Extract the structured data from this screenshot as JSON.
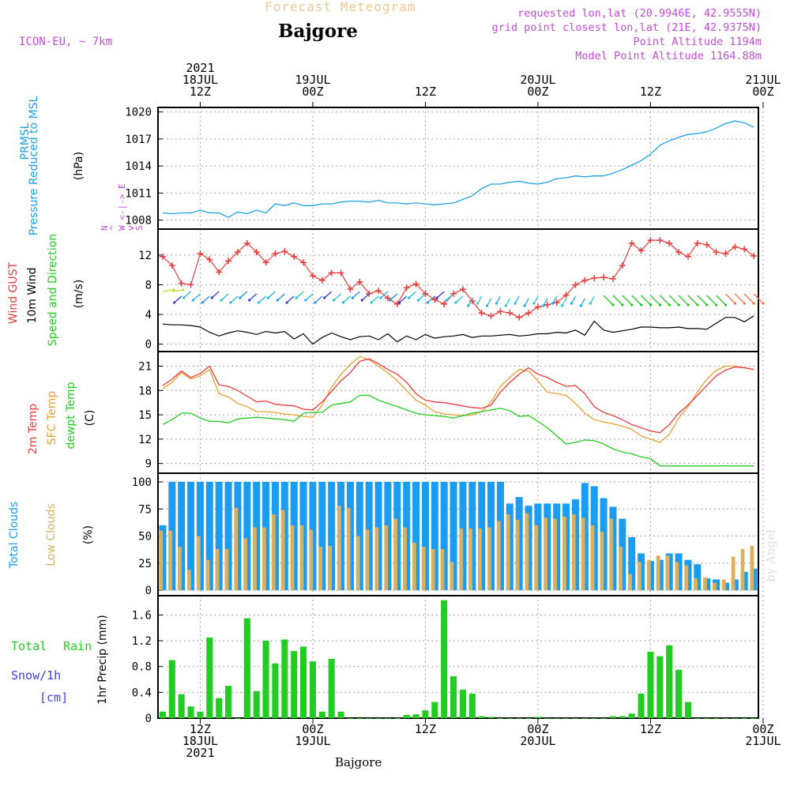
{
  "header": {
    "top_title": "Forecast Meteogram",
    "location": "Bajgore",
    "model": "ICON-EU, ~ 7km",
    "requested": "requested lon,lat (20.9946E, 42.9555N)",
    "grid_point": "grid point closest lon,lat (21E, 42.9375N)",
    "point_altitude": "Point Altitude 1194m",
    "model_altitude": "Model Point Altitude 1164.88m",
    "footer": "Bajgore",
    "credit": "by Angel"
  },
  "time_axis": {
    "top_labels": [
      {
        "line1": "2021",
        "line2": "18JUL",
        "line3": "12Z"
      },
      {
        "line1": "",
        "line2": "19JUL",
        "line3": "00Z"
      },
      {
        "line1": "",
        "line2": "",
        "line3": "12Z"
      },
      {
        "line1": "",
        "line2": "20JUL",
        "line3": "00Z"
      },
      {
        "line1": "",
        "line2": "",
        "line3": "12Z"
      },
      {
        "line1": "",
        "line2": "21JUL",
        "line3": "00Z"
      }
    ],
    "bottom_labels": [
      {
        "line1": "12Z",
        "line2": "18JUL",
        "line3": "2021"
      },
      {
        "line1": "00Z",
        "line2": "19JUL",
        "line3": ""
      },
      {
        "line1": "12Z",
        "line2": "",
        "line3": ""
      },
      {
        "line1": "00Z",
        "line2": "20JUL",
        "line3": ""
      },
      {
        "line1": "12Z",
        "line2": "",
        "line3": ""
      },
      {
        "line1": "00Z",
        "line2": "21JUL",
        "line3": ""
      }
    ],
    "hours_start": 8,
    "hours_end": 71,
    "tick_hours": [
      12,
      24,
      36,
      48,
      60,
      72
    ]
  },
  "panels": {
    "pressure": {
      "label_a": "PRMSL",
      "label_b": "Pressure Reduced to MSL",
      "unit": "(hPa)",
      "ticks": [
        "1008",
        "1011",
        "1014",
        "1017",
        "1020"
      ]
    },
    "wind": {
      "label_a": "Wind GUST",
      "label_b": "10m Wind",
      "label_c": "Speed and Direction",
      "unit": "(m/s)",
      "compass": "N\n^\nW <-|-> E\nv\nS",
      "ticks": [
        "0",
        "4",
        "8",
        "12"
      ]
    },
    "temp": {
      "label_a": "2m Temp",
      "label_b": "SFC Temp",
      "label_c": "dewpt Temp",
      "unit": "(C)",
      "ticks": [
        "9",
        "12",
        "15",
        "18",
        "21"
      ]
    },
    "clouds": {
      "label_a": "Total Clouds",
      "label_b": "Low Clouds",
      "unit": "(%)",
      "ticks": [
        "0",
        "25",
        "50",
        "75",
        "100"
      ]
    },
    "precip": {
      "label_a": "Total",
      "label_b": "Rain",
      "label_c": "Snow/1h",
      "label_d": "[cm]",
      "unit": "1hr Precip (mm)",
      "ticks": [
        "0",
        "0.4",
        "0.8",
        "1.2",
        "1.6"
      ]
    }
  },
  "colors": {
    "pressure": "#1ea0e6",
    "gust": "#e83c3c",
    "wind": "#000000",
    "temp2m": "#e83c3c",
    "sfc": "#e8a030",
    "dewpt": "#22cc22",
    "total_clouds": "#1a9cf0",
    "low_clouds": "#d9b060",
    "precip": "#22cc22",
    "purple": "#c04bd8",
    "snow": "#4040e0"
  },
  "chart_data": {
    "type": "line",
    "x_unit": "forecast hour from 18JUL2021 00Z",
    "x": [
      8,
      9,
      10,
      11,
      12,
      13,
      14,
      15,
      16,
      17,
      18,
      19,
      20,
      21,
      22,
      23,
      24,
      25,
      26,
      27,
      28,
      29,
      30,
      31,
      32,
      33,
      34,
      35,
      36,
      37,
      38,
      39,
      40,
      41,
      42,
      43,
      44,
      45,
      46,
      47,
      48,
      49,
      50,
      51,
      52,
      53,
      54,
      55,
      56,
      57,
      58,
      59,
      60,
      61,
      62,
      63,
      64,
      65,
      66,
      67,
      68,
      69,
      70,
      71
    ],
    "series": [
      {
        "name": "PRMSL",
        "values": [
          1008.8,
          1008.7,
          1008.8,
          1008.8,
          1009.1,
          1008.8,
          1008.8,
          1008.3,
          1008.9,
          1008.7,
          1009.1,
          1008.8,
          1009.8,
          1009.6,
          1009.9,
          1009.6,
          1009.6,
          1009.8,
          1009.8,
          1010.0,
          1010.1,
          1010.1,
          1010.0,
          1010.2,
          1009.9,
          1009.9,
          1009.8,
          1009.9,
          1009.8,
          1009.7,
          1009.8,
          1009.9,
          1010.3,
          1010.7,
          1011.5,
          1012.0,
          1012.0,
          1012.2,
          1012.3,
          1012.1,
          1012.0,
          1012.2,
          1012.6,
          1012.7,
          1012.9,
          1012.8,
          1012.9,
          1012.9,
          1013.2,
          1013.6,
          1014.1,
          1014.6,
          1015.3,
          1016.3,
          1016.8,
          1017.2,
          1017.5,
          1017.6,
          1017.8,
          1018.2,
          1018.7,
          1019.0,
          1018.8,
          1018.3
        ]
      },
      {
        "name": "Wind GUST",
        "values": [
          11.8,
          10.6,
          8.2,
          8.0,
          12.2,
          11.4,
          9.7,
          11.2,
          12.4,
          13.6,
          12.4,
          11.0,
          12.2,
          12.5,
          11.8,
          11.0,
          9.2,
          8.6,
          9.6,
          9.6,
          7.4,
          8.4,
          6.8,
          7.2,
          6.2,
          5.4,
          7.6,
          8.1,
          6.8,
          6.0,
          5.4,
          6.8,
          7.4,
          5.8,
          4.2,
          3.8,
          4.4,
          4.2,
          3.6,
          4.2,
          5.0,
          5.3,
          5.6,
          6.6,
          8.0,
          8.6,
          8.9,
          9.0,
          8.8,
          10.6,
          13.6,
          12.6,
          14.0,
          14.0,
          13.6,
          12.4,
          11.8,
          13.6,
          13.4,
          12.4,
          12.2,
          13.1,
          12.8,
          11.9
        ]
      },
      {
        "name": "10m Wind",
        "values": [
          2.7,
          2.6,
          2.6,
          2.5,
          2.3,
          1.6,
          1.1,
          1.5,
          1.8,
          1.6,
          1.3,
          1.7,
          1.5,
          1.7,
          0.7,
          1.4,
          0.0,
          0.9,
          1.5,
          1.0,
          0.6,
          1.0,
          1.1,
          0.6,
          1.4,
          0.3,
          1.1,
          0.6,
          1.3,
          0.8,
          1.0,
          1.1,
          1.3,
          0.9,
          1.1,
          1.1,
          1.2,
          1.3,
          1.1,
          1.2,
          1.4,
          1.4,
          1.6,
          1.5,
          1.9,
          1.2,
          3.1,
          1.9,
          1.6,
          1.8,
          2.0,
          2.3,
          2.3,
          2.2,
          2.2,
          2.3,
          2.1,
          2.1,
          2.0,
          2.8,
          3.6,
          3.6,
          3.0,
          3.8
        ]
      },
      {
        "name": "2m Temp",
        "values": [
          18.6,
          19.4,
          20.4,
          19.6,
          20.1,
          21.0,
          18.7,
          18.5,
          18.0,
          17.3,
          16.6,
          16.7,
          16.3,
          16.2,
          16.1,
          15.7,
          15.6,
          16.6,
          17.9,
          19.2,
          20.2,
          21.6,
          21.9,
          21.3,
          20.6,
          20.0,
          19.0,
          17.6,
          16.8,
          16.6,
          16.5,
          16.3,
          16.1,
          15.9,
          15.8,
          16.2,
          17.8,
          19.0,
          20.0,
          20.8,
          20.0,
          19.6,
          19.0,
          18.5,
          18.6,
          17.6,
          16.0,
          15.3,
          14.9,
          14.4,
          13.8,
          13.4,
          13.0,
          12.8,
          13.8,
          15.2,
          16.2,
          17.4,
          18.6,
          19.8,
          20.5,
          20.9,
          20.8,
          20.6
        ]
      },
      {
        "name": "SFC Temp",
        "values": [
          18.2,
          19.0,
          20.2,
          19.4,
          19.8,
          20.6,
          17.6,
          17.2,
          16.4,
          16.0,
          15.4,
          15.4,
          15.3,
          15.1,
          15.0,
          14.8,
          14.7,
          16.2,
          18.4,
          20.0,
          21.2,
          22.2,
          21.8,
          21.0,
          20.2,
          19.2,
          18.0,
          16.8,
          16.2,
          15.4,
          15.1,
          15.0,
          14.9,
          15.0,
          15.4,
          16.6,
          18.5,
          19.6,
          20.6,
          20.4,
          19.2,
          17.8,
          17.6,
          17.4,
          16.4,
          15.2,
          14.4,
          14.1,
          13.9,
          13.6,
          13.2,
          12.4,
          12.0,
          11.6,
          12.6,
          14.6,
          16.0,
          17.8,
          19.4,
          20.5,
          21.0,
          21.0,
          20.8,
          20.6
        ]
      },
      {
        "name": "dewpt Temp",
        "values": [
          13.8,
          14.4,
          15.2,
          15.2,
          14.6,
          14.2,
          14.2,
          14.0,
          14.5,
          14.6,
          14.7,
          14.6,
          14.5,
          14.4,
          14.2,
          15.2,
          15.3,
          15.3,
          16.2,
          16.4,
          16.6,
          17.4,
          17.4,
          16.8,
          16.4,
          16.0,
          15.6,
          15.2,
          15.0,
          14.9,
          14.8,
          14.6,
          14.9,
          15.2,
          15.4,
          15.6,
          15.8,
          15.5,
          14.8,
          14.9,
          14.2,
          13.4,
          12.4,
          11.4,
          11.6,
          11.9,
          11.8,
          11.4,
          10.8,
          10.4,
          10.2,
          9.8,
          9.6,
          8.7,
          8.7,
          8.7,
          8.7,
          8.7,
          8.7,
          8.7,
          8.7,
          8.7,
          8.7,
          8.7
        ]
      },
      {
        "name": "Total Clouds",
        "values": [
          60,
          100,
          100,
          100,
          100,
          100,
          100,
          100,
          100,
          100,
          100,
          100,
          100,
          100,
          100,
          100,
          100,
          100,
          100,
          100,
          100,
          100,
          100,
          100,
          100,
          100,
          100,
          100,
          100,
          100,
          100,
          100,
          100,
          100,
          100,
          100,
          100,
          80,
          86,
          78,
          80,
          80,
          80,
          80,
          84,
          99,
          96,
          85,
          77,
          66,
          49,
          34,
          27,
          28,
          34,
          34,
          28,
          24,
          11,
          10,
          7,
          10,
          17,
          20
        ]
      },
      {
        "name": "Low Clouds",
        "values": [
          55,
          55,
          40,
          19,
          50,
          28,
          38,
          38,
          76,
          48,
          58,
          58,
          70,
          74,
          60,
          60,
          56,
          40,
          41,
          78,
          76,
          50,
          56,
          58,
          60,
          66,
          58,
          44,
          40,
          38,
          38,
          26,
          57,
          57,
          57,
          58,
          64,
          70,
          65,
          71,
          60,
          67,
          66,
          68,
          70,
          67,
          60,
          54,
          66,
          40,
          15,
          26,
          28,
          32,
          32,
          26,
          23,
          11,
          12,
          7,
          10,
          31,
          38,
          41
        ]
      },
      {
        "name": "1hr Precip",
        "values": [
          0.1,
          0.9,
          0.37,
          0.18,
          0.1,
          1.25,
          0.31,
          0.5,
          0.0,
          1.55,
          0.42,
          1.2,
          0.85,
          1.22,
          1.04,
          1.11,
          0.88,
          0.1,
          0.92,
          0.1,
          0.0,
          0.0,
          0.0,
          0.0,
          0.0,
          0.0,
          0.05,
          0.06,
          0.12,
          0.25,
          1.83,
          0.65,
          0.44,
          0.38,
          0.03,
          0.02,
          0.0,
          0.0,
          0.0,
          0.0,
          0.02,
          0.0,
          0.0,
          0.0,
          0.0,
          0.0,
          0.0,
          0.0,
          0.03,
          0.03,
          0.07,
          0.38,
          1.03,
          0.96,
          1.13,
          0.75,
          0.25,
          0.0,
          0.0,
          0.0,
          0.0,
          0.0,
          0.0,
          0.0
        ]
      }
    ],
    "ylim": {
      "pressure": [
        1007,
        1020.5
      ],
      "wind": [
        -1,
        15.5
      ],
      "temp": [
        7.8,
        22.8
      ],
      "clouds": [
        -5,
        108
      ],
      "precip": [
        0,
        1.9
      ]
    },
    "grid": true,
    "title": "Forecast Meteogram"
  }
}
